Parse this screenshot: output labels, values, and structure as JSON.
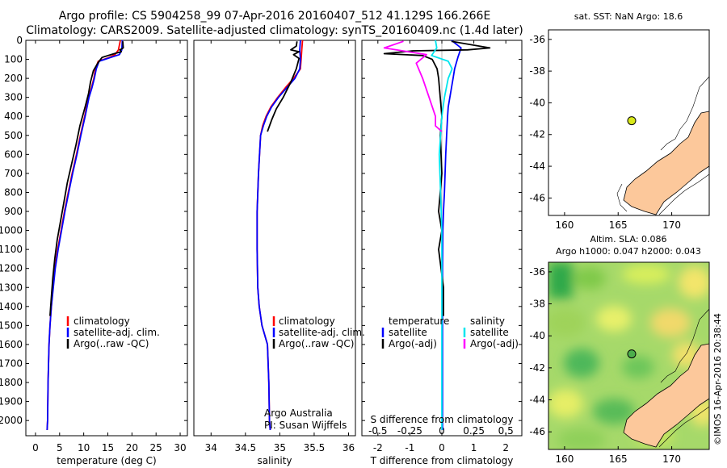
{
  "header": {
    "line1": "Argo profile: CS 5904258_99 07-Apr-2016 20160407_512 41.129S 166.266E",
    "line2": "Climatology: CARS2009. Satellite-adjusted climatology: synTS_20160409.nc (1.4d later)"
  },
  "credits": {
    "org": "Argo Australia",
    "pi": "PI: Susan Wijffels",
    "watermark": "©IMOS 16-Apr-2016 20:38:44"
  },
  "chart_data": [
    {
      "type": "line",
      "id": "temperature",
      "xlabel": "temperature (deg C)",
      "ylabel": "",
      "xlim": [
        -2,
        31.5
      ],
      "ylim": [
        2080,
        0
      ],
      "xticks": [
        0,
        5,
        10,
        15,
        20,
        25,
        30
      ],
      "yticks": [
        0,
        100,
        200,
        300,
        400,
        500,
        600,
        700,
        800,
        900,
        1000,
        1100,
        1200,
        1300,
        1400,
        1500,
        1600,
        1700,
        1800,
        1900,
        2000
      ],
      "legend": [
        "climatology",
        "satellite-adj. clim.",
        "Argo(..raw -QC)"
      ],
      "series": [
        {
          "name": "climatology",
          "color": "#ff0000",
          "x": [
            17.6,
            17.2,
            16.5,
            15.3,
            13.0,
            12.4,
            12.1,
            11.6,
            11.0,
            10.2,
            9.3,
            8.5,
            7.6,
            6.8,
            6.0,
            5.3,
            4.6,
            4.0,
            3.6,
            3.3,
            3.0,
            2.8,
            2.6,
            2.5,
            2.4
          ],
          "y": [
            0,
            50,
            75,
            90,
            110,
            150,
            200,
            250,
            300,
            400,
            500,
            600,
            700,
            800,
            900,
            1000,
            1100,
            1200,
            1300,
            1400,
            1500,
            1600,
            1800,
            2000,
            2050
          ]
        },
        {
          "name": "satellite-adj. clim.",
          "color": "#0000ff",
          "x": [
            18.0,
            17.9,
            17.4,
            15.6,
            13.2,
            12.6,
            12.2,
            11.7,
            11.1,
            10.3,
            9.4,
            8.6,
            7.7,
            6.9,
            6.1,
            5.4,
            4.7,
            4.1,
            3.7,
            3.3,
            3.0,
            2.8,
            2.6,
            2.5,
            2.4
          ],
          "y": [
            0,
            50,
            75,
            90,
            110,
            150,
            200,
            250,
            300,
            400,
            500,
            600,
            700,
            800,
            900,
            1000,
            1100,
            1200,
            1300,
            1400,
            1500,
            1600,
            1800,
            2000,
            2050
          ]
        },
        {
          "name": "Argo(..raw -QC)",
          "color": "#000000",
          "x": [
            18.1,
            18.2,
            17.5,
            17.8,
            16.3,
            13.8,
            12.9,
            12.0,
            11.4,
            11.0,
            10.3,
            9.2,
            8.4,
            7.5,
            6.6,
            5.9,
            5.2,
            4.5,
            4.0,
            3.6,
            3.3,
            3.0
          ],
          "y": [
            5,
            40,
            50,
            60,
            70,
            90,
            120,
            160,
            220,
            280,
            350,
            450,
            550,
            650,
            750,
            850,
            950,
            1050,
            1150,
            1250,
            1350,
            1450
          ]
        }
      ]
    },
    {
      "type": "line",
      "id": "salinity",
      "xlabel": "salinity",
      "ylabel": "",
      "xlim": [
        33.75,
        36.1
      ],
      "ylim": [
        2080,
        0
      ],
      "xticks": [
        34,
        34.5,
        35,
        35.5,
        36
      ],
      "xtick_labels": [
        "34",
        "34.5",
        "35",
        "35.5",
        "36"
      ],
      "legend": [
        "climatology",
        "satellite-adj. clim.",
        "Argo(..raw -QC)"
      ],
      "series": [
        {
          "name": "climatology",
          "color": "#ff0000",
          "x": [
            35.33,
            35.32,
            35.31,
            35.3,
            35.2,
            35.08,
            34.97,
            34.87,
            34.8,
            34.75,
            34.72,
            34.69,
            34.67,
            34.67,
            34.68,
            34.7,
            34.74,
            34.82,
            34.84,
            34.85,
            34.86
          ],
          "y": [
            0,
            50,
            100,
            150,
            200,
            250,
            300,
            350,
            400,
            450,
            500,
            700,
            900,
            1100,
            1300,
            1400,
            1500,
            1600,
            1800,
            2000,
            2050
          ]
        },
        {
          "name": "satellite-adj. clim.",
          "color": "#0000ff",
          "x": [
            35.3,
            35.29,
            35.3,
            35.29,
            35.22,
            35.1,
            34.98,
            34.88,
            34.81,
            34.76,
            34.72,
            34.69,
            34.67,
            34.67,
            34.68,
            34.7,
            34.74,
            34.82,
            34.84,
            34.85,
            34.86
          ],
          "y": [
            0,
            50,
            100,
            150,
            200,
            250,
            300,
            350,
            400,
            450,
            500,
            700,
            900,
            1100,
            1300,
            1400,
            1500,
            1600,
            1800,
            2000,
            2050
          ]
        },
        {
          "name": "Argo(..raw -QC)",
          "color": "#000000",
          "x": [
            35.25,
            35.24,
            35.16,
            35.28,
            35.2,
            35.28,
            35.24,
            35.16,
            35.05,
            34.95,
            34.88,
            34.82
          ],
          "y": [
            5,
            30,
            50,
            60,
            75,
            95,
            150,
            220,
            300,
            360,
            420,
            480
          ]
        }
      ]
    },
    {
      "type": "line",
      "id": "difference",
      "xlabel": "T difference from climatology",
      "ylabel": "",
      "title_bottom": "S difference from climatology",
      "xlim": [
        -2.5,
        2.5
      ],
      "ylim": [
        2080,
        0
      ],
      "xticks": [
        -2,
        -1,
        0,
        1,
        2
      ],
      "s_xticks_labels": [
        "-0.5",
        "-0.25",
        "0",
        "0.25",
        "0.5"
      ],
      "legend_temperature_title": "temperature",
      "legend_salinity_title": "salinity",
      "legend_temperature": [
        "satellite",
        "Argo(-adj)"
      ],
      "legend_salinity": [
        "satellite",
        "Argo(-adj)"
      ],
      "series": [
        {
          "name": "temperature satellite",
          "color": "#0000ff",
          "x": [
            0.3,
            0.6,
            0.5,
            0.4,
            0.35,
            0.3,
            0.25,
            0.2,
            0.18,
            0.15,
            0.12,
            0.1,
            0.08,
            0.05,
            0.03,
            0.02,
            0.02
          ],
          "y": [
            0,
            40,
            90,
            150,
            200,
            250,
            300,
            350,
            400,
            500,
            600,
            700,
            800,
            900,
            1000,
            1200,
            2050
          ]
        },
        {
          "name": "temperature Argo(-adj)",
          "color": "#000000",
          "x": [
            0.3,
            1.5,
            0.8,
            -0.9,
            -1.8,
            -0.6,
            -0.3,
            -0.15,
            -0.1,
            -0.05,
            0.0,
            -0.05,
            0.0,
            -0.1,
            0.0,
            -0.1,
            0.05,
            0.05
          ],
          "y": [
            5,
            40,
            50,
            55,
            70,
            80,
            100,
            150,
            200,
            300,
            400,
            500,
            700,
            900,
            1000,
            1100,
            1300,
            1450
          ]
        },
        {
          "name": "salinity satellite",
          "color": "#00e5ee",
          "x": [
            -0.05,
            -0.04,
            -0.08,
            0.05,
            0.08,
            0.05,
            0.02,
            0.0,
            -0.02,
            0.0,
            0.0
          ],
          "y": [
            0,
            40,
            80,
            110,
            150,
            200,
            300,
            400,
            600,
            1000,
            2050
          ]
        },
        {
          "name": "salinity Argo(-adj)",
          "color": "#ff00ff",
          "x": [
            -0.3,
            -0.45,
            -0.12,
            -0.2,
            -0.15,
            -0.1,
            -0.05,
            -0.05,
            0.0
          ],
          "y": [
            5,
            40,
            75,
            120,
            200,
            300,
            400,
            450,
            480
          ]
        }
      ]
    },
    {
      "type": "heatmap",
      "id": "sst_map",
      "title": "sat. SST: NaN Argo: 18.6",
      "xticks": [
        160,
        165,
        170
      ],
      "yticks": [
        -36,
        -38,
        -40,
        -42,
        -44,
        -46
      ],
      "xlim": [
        158.5,
        173.5
      ],
      "ylim": [
        -47.1,
        -35.4
      ],
      "float_position": {
        "lon": 166.266,
        "lat": -41.129
      }
    },
    {
      "type": "heatmap",
      "id": "sla_map",
      "title": "Altim. SLA: 0.086",
      "subtitle": "Argo h1000: 0.047 h2000: 0.043",
      "xticks": [
        160,
        165,
        170
      ],
      "yticks": [
        -36,
        -38,
        -40,
        -42,
        -44,
        -46
      ],
      "xlim": [
        158.5,
        173.5
      ],
      "ylim": [
        -47.1,
        -35.4
      ],
      "float_position": {
        "lon": 166.266,
        "lat": -41.129
      }
    }
  ]
}
